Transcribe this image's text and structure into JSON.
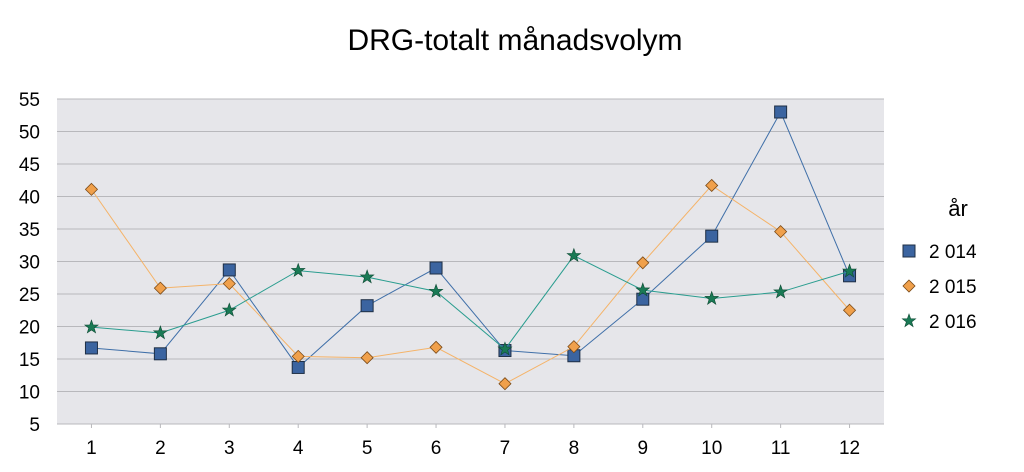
{
  "chart_data": {
    "type": "line",
    "title": "DRG-totalt månadsvolym",
    "xlabel": "",
    "ylabel": "",
    "categories": [
      "1",
      "2",
      "3",
      "4",
      "5",
      "6",
      "7",
      "8",
      "9",
      "10",
      "11",
      "12"
    ],
    "ylim": [
      5,
      55
    ],
    "yticks": [
      5,
      10,
      15,
      20,
      25,
      30,
      35,
      40,
      45,
      50,
      55
    ],
    "grid": true,
    "legend_position": "right",
    "legend_title": "år",
    "series": [
      {
        "name": "2 014",
        "marker": "square",
        "color": "#3f6fa8",
        "fill": "#3b64a0",
        "values": [
          16.7,
          15.8,
          28.7,
          13.7,
          23.2,
          29.0,
          16.3,
          15.5,
          24.2,
          33.9,
          53.0,
          27.8
        ]
      },
      {
        "name": "2 015",
        "marker": "diamond",
        "color": "#f5b368",
        "fill": "#f0a04b",
        "values": [
          41.1,
          25.9,
          26.6,
          15.4,
          15.2,
          16.8,
          11.2,
          16.9,
          29.8,
          41.7,
          34.6,
          22.5
        ]
      },
      {
        "name": "2 016",
        "marker": "star",
        "color": "#2a9d8f",
        "fill": "#1a7a55",
        "values": [
          19.9,
          19.0,
          22.5,
          28.6,
          27.6,
          25.4,
          16.5,
          30.9,
          25.6,
          24.3,
          25.3,
          28.5
        ]
      }
    ]
  }
}
